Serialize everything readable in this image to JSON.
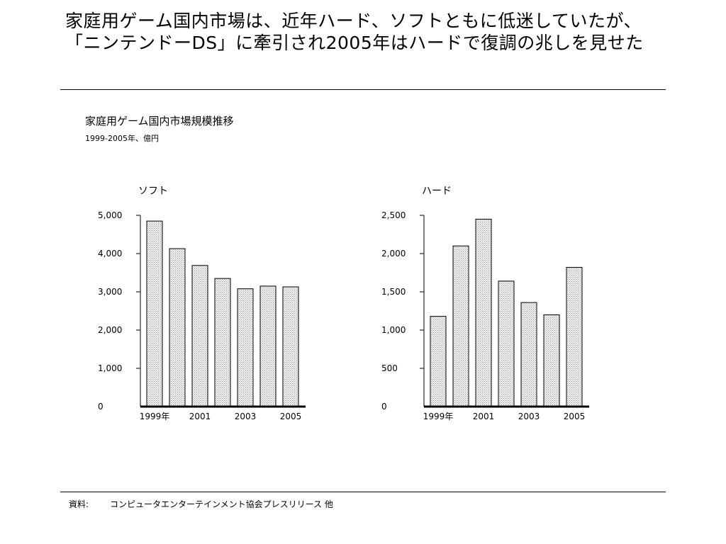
{
  "headline": {
    "line1": "家庭用ゲーム国内市場は、近年ハード、ソフトともに低迷していたが、",
    "line2": "「ニンテンドーDS」に牽引され2005年はハードで復調の兆しを見せた"
  },
  "chart_heading": {
    "title": "家庭用ゲーム国内市場規模推移",
    "subtitle": "1999-2005年、億円"
  },
  "chart_data": [
    {
      "type": "bar",
      "title": "ソフト",
      "categories": [
        "1999",
        "2000",
        "2001",
        "2002",
        "2003",
        "2004",
        "2005"
      ],
      "category_labels": [
        "1999年",
        "",
        "2001",
        "",
        "2003",
        "",
        "2005"
      ],
      "values": [
        4850,
        4130,
        3690,
        3350,
        3080,
        3150,
        3130
      ],
      "ylim": [
        0,
        5000
      ],
      "yticks": [
        0,
        1000,
        2000,
        3000,
        4000,
        5000
      ],
      "ytick_labels": [
        "0",
        "1,000",
        "2,000",
        "3,000",
        "4,000",
        "5,000"
      ],
      "grid": false,
      "bar_fill": "#d8d8d8"
    },
    {
      "type": "bar",
      "title": "ハード",
      "categories": [
        "1999",
        "2000",
        "2001",
        "2002",
        "2003",
        "2004",
        "2005"
      ],
      "category_labels": [
        "1999年",
        "",
        "2001",
        "",
        "2003",
        "",
        "2005"
      ],
      "values": [
        1180,
        2100,
        2450,
        1640,
        1360,
        1200,
        1820
      ],
      "ylim": [
        0,
        2500
      ],
      "yticks": [
        0,
        500,
        1000,
        1500,
        2000,
        2500
      ],
      "ytick_labels": [
        "0",
        "500",
        "1,000",
        "1,500",
        "2,000",
        "2,500"
      ],
      "grid": false,
      "bar_fill": "#d8d8d8"
    }
  ],
  "footer": {
    "label": "資料:",
    "text": "コンピュータエンターテインメント協会プレスリリース 他"
  }
}
